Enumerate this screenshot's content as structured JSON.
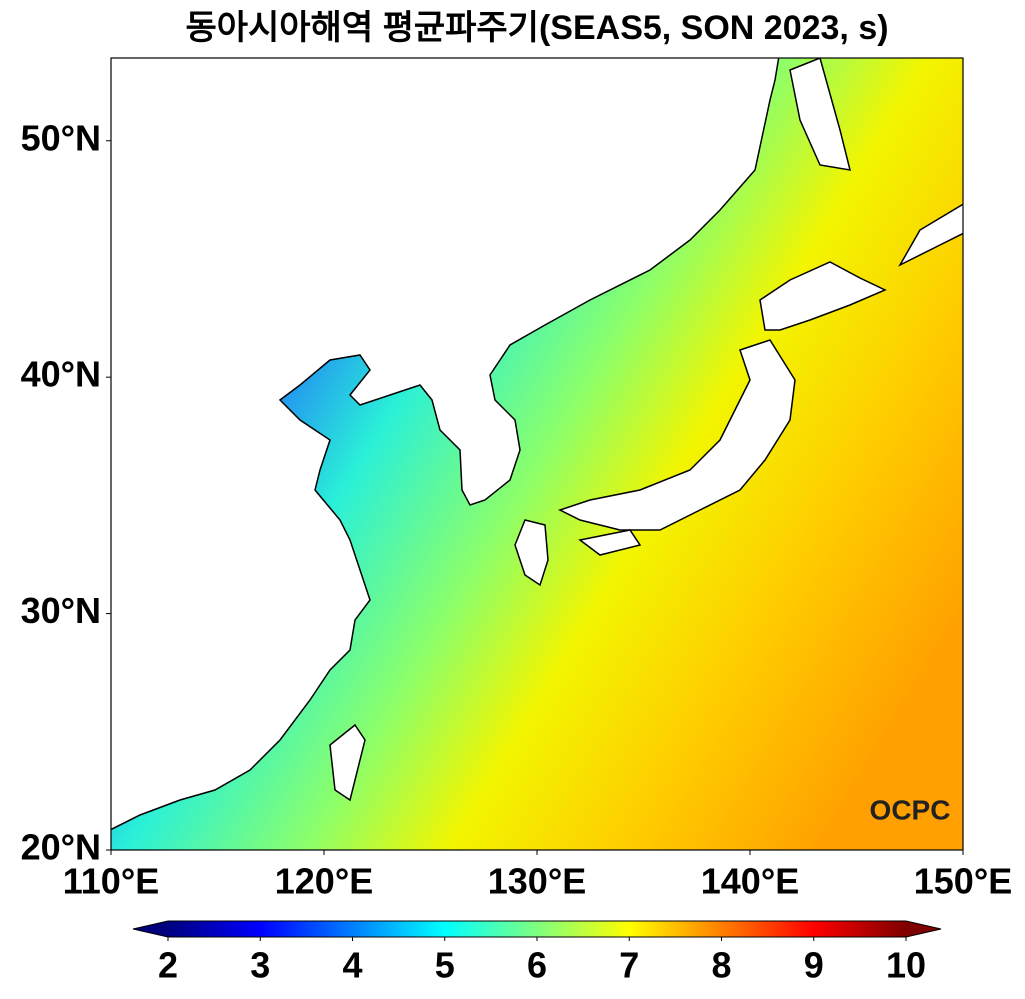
{
  "title": "동아시아해역 평균파주기(SEAS5, SON 2023, s)",
  "map": {
    "xlim": [
      110,
      150
    ],
    "ylim": [
      20,
      53.5
    ],
    "xticks": [
      {
        "value": 110,
        "label": "110°E"
      },
      {
        "value": 120,
        "label": "120°E"
      },
      {
        "value": 130,
        "label": "130°E"
      },
      {
        "value": 140,
        "label": "140°E"
      },
      {
        "value": 150,
        "label": "150°E"
      }
    ],
    "yticks": [
      {
        "value": 20,
        "label": "20°N"
      },
      {
        "value": 30,
        "label": "30°N"
      },
      {
        "value": 40,
        "label": "40°N"
      },
      {
        "value": 50,
        "label": "50°N"
      }
    ]
  },
  "colorbar": {
    "clim": [
      2,
      10
    ],
    "ticks": [
      2,
      3,
      4,
      5,
      6,
      7,
      8,
      9,
      10
    ],
    "extend": "both",
    "colormap": [
      "#00007f",
      "#0000ff",
      "#007fff",
      "#00ffff",
      "#7fff7f",
      "#ffff00",
      "#ff7f00",
      "#ff0000",
      "#7f0000"
    ]
  },
  "logo": "OCPC"
}
